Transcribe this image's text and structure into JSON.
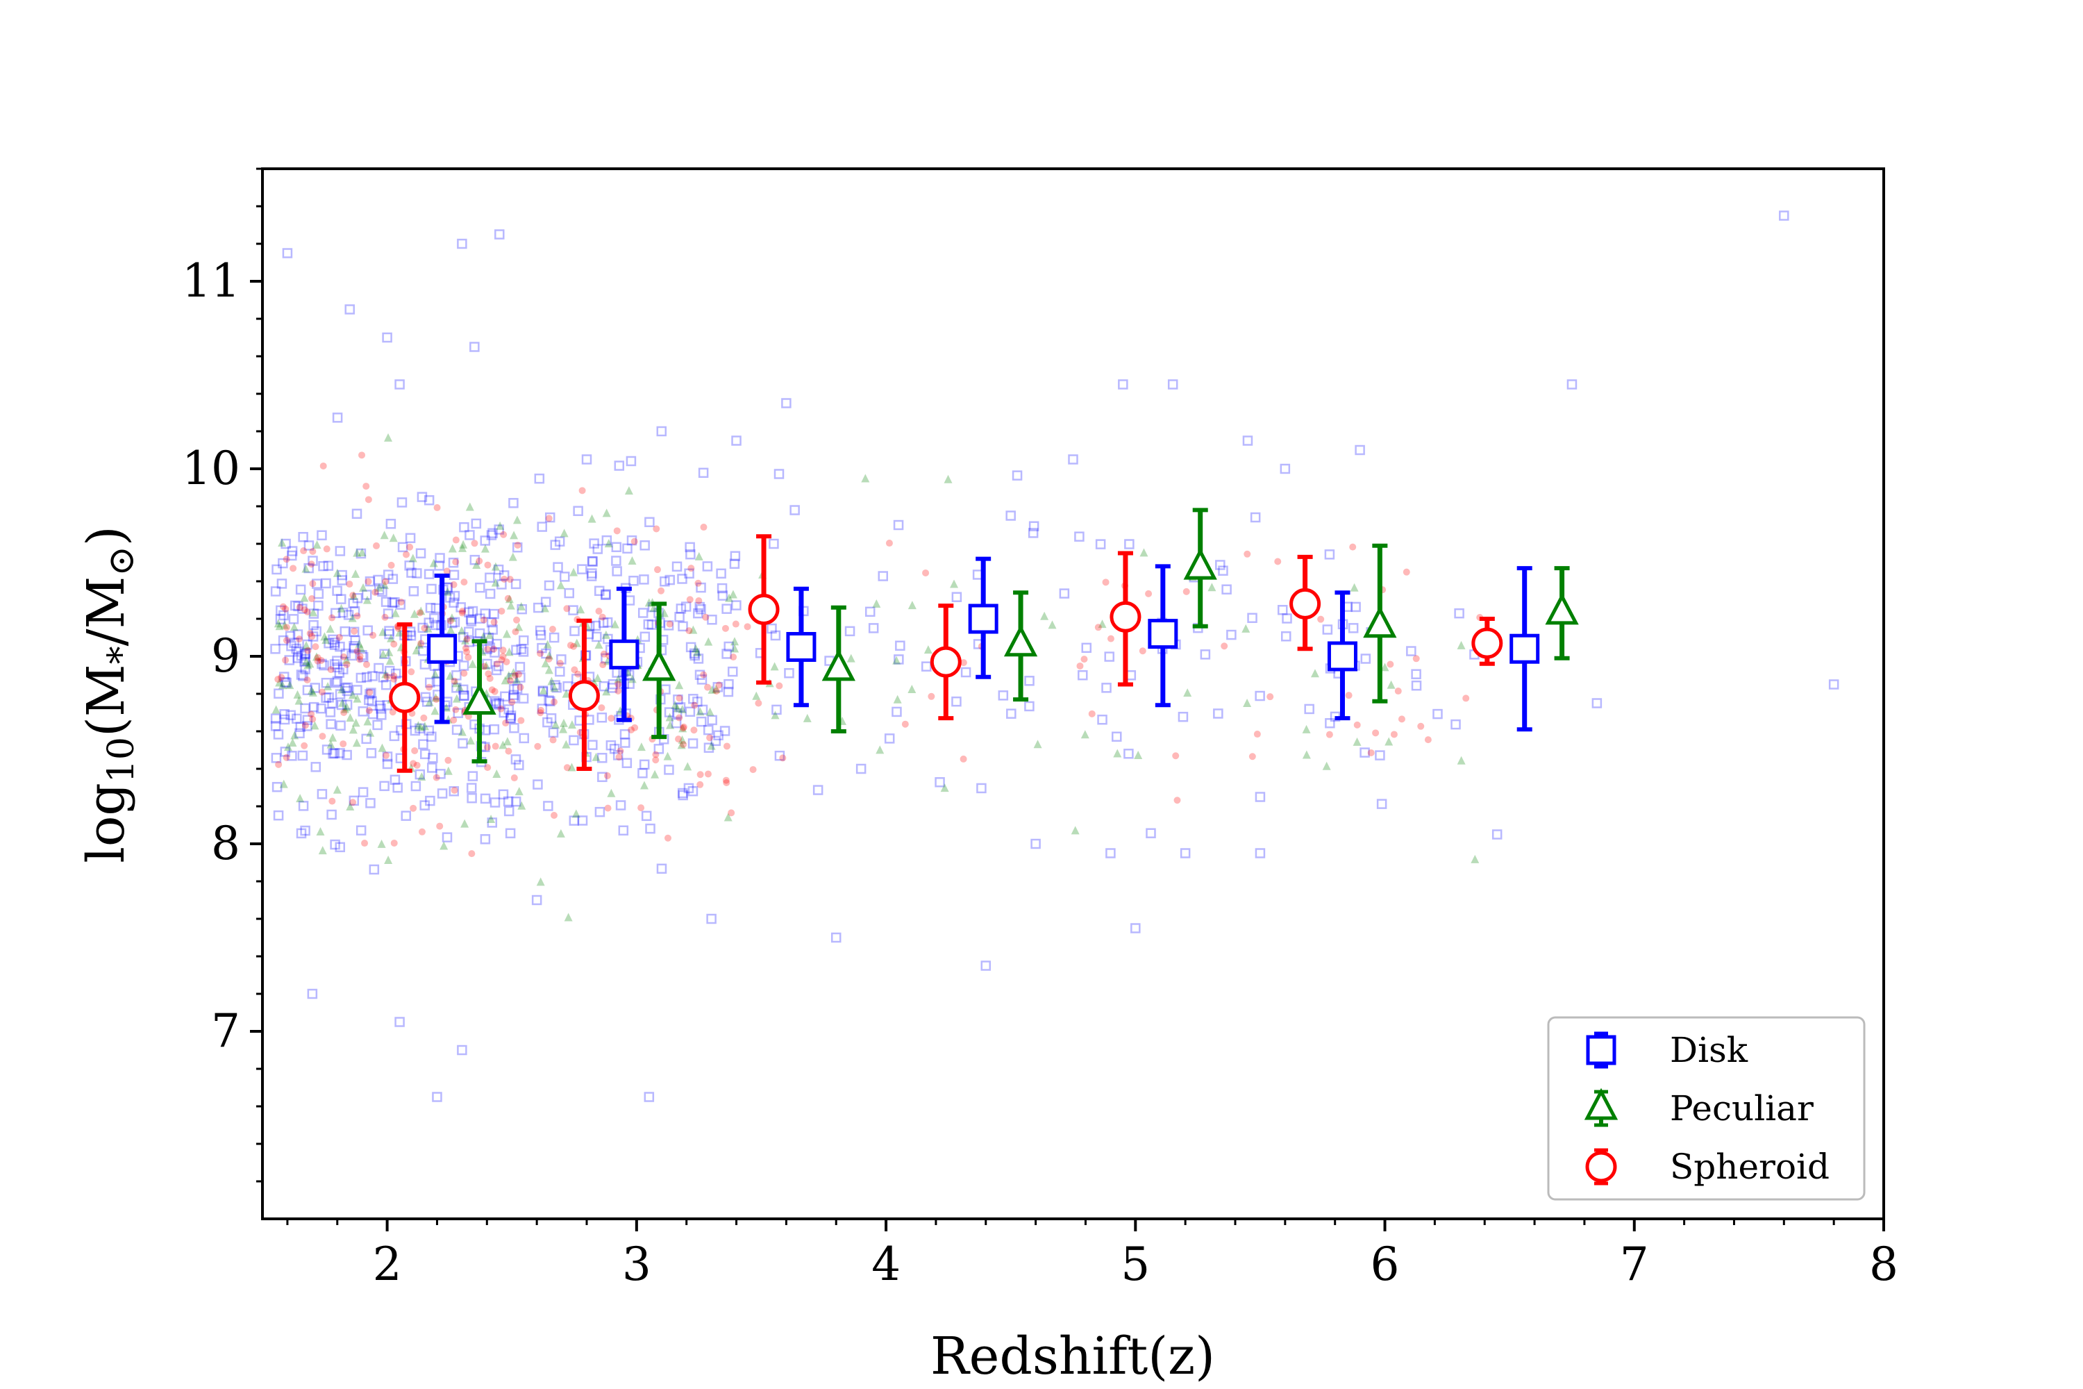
{
  "chart_data": {
    "type": "scatter",
    "xlabel": "Redshift(z)",
    "ylabel_text": "log",
    "ylabel_sub": "10",
    "ylabel_rest": "(M",
    "ylabel_star": "*",
    "ylabel_slash": "/M",
    "ylabel_sun": "⊙",
    "ylabel_close": ")",
    "xlim": [
      1.5,
      8.0
    ],
    "ylim": [
      6.0,
      11.6
    ],
    "xticks": [
      2,
      3,
      4,
      5,
      6,
      7,
      8
    ],
    "xtick_labels": [
      "2",
      "3",
      "4",
      "5",
      "6",
      "7",
      "8"
    ],
    "yticks": [
      7,
      8,
      9,
      10,
      11
    ],
    "ytick_labels": [
      "7",
      "8",
      "9",
      "10",
      "11"
    ],
    "legend_position": "lower-right",
    "series": [
      {
        "name": "Disk",
        "color": "#0000ff",
        "marker": "square",
        "points": [
          {
            "x": 2.22,
            "y": 9.04,
            "ylow": 8.65,
            "yhigh": 9.43
          },
          {
            "x": 2.95,
            "y": 9.01,
            "ylow": 8.66,
            "yhigh": 9.36
          },
          {
            "x": 3.66,
            "y": 9.05,
            "ylow": 8.74,
            "yhigh": 9.36
          },
          {
            "x": 4.39,
            "y": 9.2,
            "ylow": 8.89,
            "yhigh": 9.52
          },
          {
            "x": 5.11,
            "y": 9.12,
            "ylow": 8.74,
            "yhigh": 9.48
          },
          {
            "x": 5.83,
            "y": 9.0,
            "ylow": 8.67,
            "yhigh": 9.34
          },
          {
            "x": 6.56,
            "y": 9.04,
            "ylow": 8.61,
            "yhigh": 9.47
          }
        ]
      },
      {
        "name": "Peculiar",
        "color": "#008000",
        "marker": "triangle",
        "points": [
          {
            "x": 2.37,
            "y": 8.75,
            "ylow": 8.44,
            "yhigh": 9.08
          },
          {
            "x": 3.09,
            "y": 8.93,
            "ylow": 8.57,
            "yhigh": 9.28
          },
          {
            "x": 3.81,
            "y": 8.93,
            "ylow": 8.6,
            "yhigh": 9.26
          },
          {
            "x": 4.54,
            "y": 9.06,
            "ylow": 8.77,
            "yhigh": 9.34
          },
          {
            "x": 5.26,
            "y": 9.47,
            "ylow": 9.16,
            "yhigh": 9.78
          },
          {
            "x": 5.98,
            "y": 9.16,
            "ylow": 8.76,
            "yhigh": 9.59
          },
          {
            "x": 6.71,
            "y": 9.23,
            "ylow": 8.99,
            "yhigh": 9.47
          }
        ]
      },
      {
        "name": "Spheroid",
        "color": "#ff0000",
        "marker": "circle",
        "points": [
          {
            "x": 2.07,
            "y": 8.78,
            "ylow": 8.39,
            "yhigh": 9.17
          },
          {
            "x": 2.79,
            "y": 8.79,
            "ylow": 8.4,
            "yhigh": 9.19
          },
          {
            "x": 3.51,
            "y": 9.25,
            "ylow": 8.86,
            "yhigh": 9.64
          },
          {
            "x": 4.24,
            "y": 8.97,
            "ylow": 8.67,
            "yhigh": 9.27
          },
          {
            "x": 4.96,
            "y": 9.21,
            "ylow": 8.85,
            "yhigh": 9.55
          },
          {
            "x": 5.68,
            "y": 9.28,
            "ylow": 9.04,
            "yhigh": 9.53
          },
          {
            "x": 6.41,
            "y": 9.07,
            "ylow": 8.96,
            "yhigh": 9.2
          }
        ]
      }
    ],
    "background_scatter": {
      "description_of_density": "several hundred faint markers per class, concentrated at z~1.6-3.4, mass ~7-11",
      "disk": [
        [
          2.05,
          10.45
        ],
        [
          1.85,
          10.85
        ],
        [
          2.3,
          11.2
        ],
        [
          2.45,
          11.25
        ],
        [
          1.6,
          11.15
        ],
        [
          7.6,
          11.35
        ],
        [
          6.75,
          10.45
        ],
        [
          5.15,
          10.45
        ],
        [
          4.95,
          10.45
        ],
        [
          7.8,
          8.85
        ],
        [
          6.85,
          8.75
        ],
        [
          6.45,
          8.05
        ],
        [
          4.4,
          7.35
        ],
        [
          5.0,
          7.55
        ],
        [
          3.05,
          6.65
        ],
        [
          2.2,
          6.65
        ],
        [
          2.3,
          6.9
        ],
        [
          2.05,
          7.05
        ],
        [
          1.7,
          7.2
        ],
        [
          2.6,
          7.7
        ],
        [
          3.3,
          7.6
        ],
        [
          3.8,
          7.5
        ],
        [
          5.5,
          8.25
        ],
        [
          5.5,
          7.95
        ],
        [
          5.2,
          7.95
        ],
        [
          4.9,
          7.95
        ],
        [
          4.6,
          8.0
        ],
        [
          3.9,
          8.4
        ],
        [
          4.5,
          9.75
        ],
        [
          4.75,
          10.05
        ],
        [
          5.6,
          10.0
        ],
        [
          5.45,
          10.15
        ],
        [
          5.9,
          10.1
        ],
        [
          4.05,
          9.7
        ],
        [
          3.55,
          9.6
        ],
        [
          3.1,
          10.2
        ],
        [
          2.8,
          10.05
        ],
        [
          3.4,
          10.15
        ],
        [
          3.6,
          10.35
        ],
        [
          2.35,
          10.65
        ],
        [
          2.0,
          10.7
        ]
      ]
    }
  }
}
